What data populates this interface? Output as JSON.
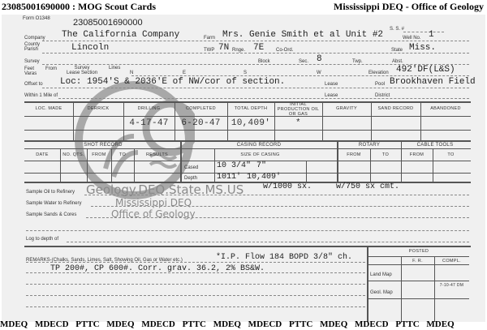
{
  "header": {
    "title": "23085001690000 : MOG Scout Cards",
    "agency": "Mississippi DEQ - Office of Geology"
  },
  "card": {
    "form_no": "Form O1348",
    "card_number": "23085001690000",
    "ss_label": "S. S. #",
    "company": {
      "label": "Company",
      "value": "The California Company"
    },
    "farm": {
      "label": "Farm",
      "value": "Mrs. Genie Smith et al Unit #2"
    },
    "well_no": {
      "label": "Well No.",
      "value": "1"
    },
    "county": {
      "label1": "County",
      "label2": "Parish",
      "value": "Lincoln"
    },
    "twp": {
      "label": "TWP",
      "value": "7N"
    },
    "rnge": {
      "label": "Rnge.",
      "value": "7E"
    },
    "coord": {
      "label": "Co-Ord."
    },
    "state": {
      "label": "State",
      "value": "Miss."
    },
    "survey": {
      "label": "Survey"
    },
    "block": {
      "label": "Block"
    },
    "sec": {
      "label": "Sec.",
      "value": "8"
    },
    "twp2": {
      "label": "Twp."
    },
    "abst": {
      "label": "Abst."
    },
    "feet": {
      "label1": "Feet",
      "label2": "Varas",
      "from": "From",
      "survey": "Survey",
      "lease_section": "Lease Section",
      "lines": "Lines",
      "n": "N",
      "e": "E",
      "s": "S",
      "w": "W"
    },
    "elevation": {
      "label": "Elevation",
      "value": "492'DF(L&S)"
    },
    "offset": {
      "label": "Offset to",
      "value": "Loc: 1954'S & 2036'E of NW/cor of section."
    },
    "lease_label": "Lease",
    "pool": {
      "label": "Pool",
      "value": "Brookhaven Field"
    },
    "within": {
      "label": "Within 1 Mile of"
    },
    "district": {
      "label": "District"
    },
    "table1": {
      "headers": [
        "LOC. MADE",
        "DERRICK",
        "DRILLING",
        "COMPLETED",
        "TOTAL DEPTH",
        "INITIAL PRODUCTION OIL OR GAS",
        "GRAVITY",
        "SAND RECORD",
        "ABANDONED"
      ],
      "values": [
        "",
        "",
        "4-17-47",
        "6-20-47",
        "10,409'",
        "*",
        "",
        "",
        ""
      ]
    },
    "shot": {
      "title": "SHOT RECORD",
      "headers": [
        "DATE",
        "NO. QTS.",
        "FROM",
        "TO",
        "RESULTS"
      ]
    },
    "casing": {
      "title": "CASING RECORD",
      "size_label": "SIZE OF CASING",
      "cased_label": "Cased",
      "depth_label": "Depth",
      "cased": [
        "10 3/4\"",
        "7\""
      ],
      "depth": [
        "1011'",
        "10,409'"
      ],
      "cement": "w/1000 sx.     w/750 sx cmt."
    },
    "rotary": {
      "title": "ROTARY",
      "from": "FROM",
      "to": "TO"
    },
    "cable": {
      "title": "CABLE TOOLS",
      "from": "FROM",
      "to": "TO"
    },
    "samples": [
      "Sample Oil to Refinery",
      "Sample Water to Refinery",
      "Sample Sands & Cores"
    ],
    "log_label": "Log to depth of",
    "remarks": {
      "label": "REMARKS-(Chalks, Sands, Limes, Salt, Showing Oil, Gas or Water etc.)",
      "line1": "*I.P.  Flow 184 BOPD 3/8\" ch.",
      "line2": "TP 200#, CP 600#.  Corr. grav. 36.2, 2% BS&W."
    },
    "posted": {
      "title": "POSTED",
      "fr": "F. R.",
      "compl": "COMPL.",
      "land_map": "Land Map",
      "geol_map": "Geol. Map",
      "geol_compl": "7-10-47 DM"
    }
  },
  "watermark": {
    "url": "Geology.DEQ.State.MS.US",
    "line1": "Mississippi DEQ",
    "line2": "Office of Geology"
  },
  "footer": {
    "text": "MDEQ MDECD PTTC MDEQ MDECD PTTC MDEQ MDECD PTTC MDEQ MDECD PTTC MDEQ"
  }
}
